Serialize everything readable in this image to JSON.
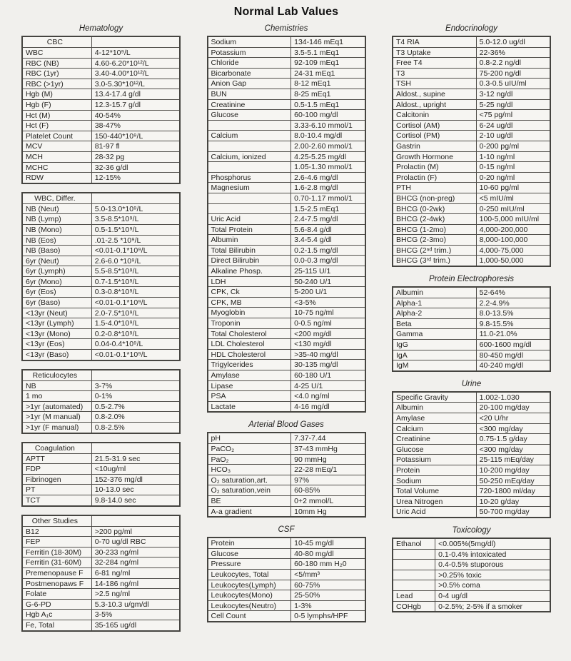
{
  "page_title": "Normal Lab Values",
  "columns": [
    {
      "sections": [
        {
          "heading": "Hematology",
          "table_header": "CBC",
          "rows": [
            [
              "WBC",
              "4-12*10⁹/L"
            ],
            [
              "RBC (NB)",
              "4.60-6.20*10¹²/L"
            ],
            [
              "RBC (1yr)",
              "3.40-4.00*10¹²/L"
            ],
            [
              "RBC (>1yr)",
              "3.0-5.30*10¹²/L"
            ],
            [
              "Hgb (M)",
              "13.4-17.4 g/dl"
            ],
            [
              "Hgb (F)",
              "12.3-15.7 g/dl"
            ],
            [
              "Hct (M)",
              "40-54%"
            ],
            [
              "Hct (F)",
              "38-47%"
            ],
            [
              "Platelet Count",
              "150-440*10⁹/L"
            ],
            [
              "MCV",
              "81-97 fl"
            ],
            [
              "MCH",
              "28-32 pg"
            ],
            [
              "MCHC",
              "32-36 g/dl"
            ],
            [
              "RDW",
              "12-15%"
            ]
          ]
        },
        {
          "table_header": "WBC, Differ.",
          "rows": [
            [
              "NB (Neut)",
              "5.0-13.0*10⁹/L"
            ],
            [
              "NB (Lymp)",
              "3.5-8.5*10⁹/L"
            ],
            [
              "NB (Mono)",
              "0.5-1.5*10⁹/L"
            ],
            [
              "NB (Eos)",
              ".01-2.5 *10⁹/L"
            ],
            [
              "NB (Baso)",
              "<0.01-0.1*10⁹/L"
            ],
            [
              "6yr (Neut)",
              "2.6-6.0 *10⁹/L"
            ],
            [
              "6yr (Lymph)",
              "5.5-8.5*10⁹/L"
            ],
            [
              "6yr (Mono)",
              "0.7-1.5*10⁹/L"
            ],
            [
              "6yr (Eos)",
              "0.3-0.8*10⁹/L"
            ],
            [
              "6yr (Baso)",
              "<0.01-0.1*10⁹/L"
            ],
            [
              "<13yr (Neut)",
              "2.0-7.5*10⁹/L"
            ],
            [
              "<13yr (Lymph)",
              "1.5-4.0*10⁹/L"
            ],
            [
              "<13yr (Mono)",
              "0.2-0.8*10⁹/L"
            ],
            [
              "<13yr (Eos)",
              "0.04-0.4*10⁹/L"
            ],
            [
              "<13yr (Baso)",
              "<0.01-0.1*10⁹/L"
            ]
          ]
        },
        {
          "table_header": "Reticulocytes",
          "rows": [
            [
              "NB",
              "3-7%"
            ],
            [
              "1 mo",
              "0-1%"
            ],
            [
              ">1yr (automated)",
              "0.5-2.7%"
            ],
            [
              ">1yr (M manual)",
              "0.8-2.0%"
            ],
            [
              ">1yr (F manual)",
              "0.8-2.5%"
            ]
          ]
        },
        {
          "table_header": "Coagulation",
          "rows": [
            [
              "APTT",
              "21.5-31.9 sec"
            ],
            [
              "FDP",
              "<10ug/ml"
            ],
            [
              "Fibrinogen",
              "152-376 mg/dl"
            ],
            [
              "PT",
              "10-13.0 sec"
            ],
            [
              "TCT",
              "9.8-14.0 sec"
            ]
          ]
        },
        {
          "table_header": "Other Studies",
          "rows": [
            [
              "B12",
              ">200 pg/ml"
            ],
            [
              "FEP",
              "0-70 ug/dl RBC"
            ],
            [
              "Ferritin (18-30M)",
              "30-233 ng/ml"
            ],
            [
              "Ferritin (31-60M)",
              "32-284 ng/ml"
            ],
            [
              "Premenopause F",
              "6-81 ng/ml"
            ],
            [
              "Postmenopaws F",
              "14-186 ng/ml"
            ],
            [
              "Folate",
              ">2.5 ng/ml"
            ],
            [
              "G-6-PD",
              "5.3-10.3 u/gm/dl"
            ],
            [
              "Hgb A₁c",
              "3-5%"
            ],
            [
              "Fe, Total",
              "35-165 ug/dl"
            ]
          ]
        }
      ]
    },
    {
      "sections": [
        {
          "heading": "Chemistries",
          "variant": "wide-label",
          "rows": [
            [
              "Sodium",
              "134-146 mEq1"
            ],
            [
              "Potassium",
              "3.5-5.1 mEq1"
            ],
            [
              "Chloride",
              "92-109 mEq1"
            ],
            [
              "Bicarbonate",
              "24-31 mEq1"
            ],
            [
              "Anion Gap",
              "8-12 mEq1"
            ],
            [
              "BUN",
              "8-25 mEq1"
            ],
            [
              "Creatinine",
              "0.5-1.5 mEq1"
            ],
            [
              "Glucose",
              "60-100 mg/dl"
            ],
            [
              "",
              "3.33-6.10 mmol/1"
            ],
            [
              "Calcium",
              "8.0-10.4 mg/dl"
            ],
            [
              "",
              "2.00-2.60 mmol/1"
            ],
            [
              "Calcium, ionized",
              "4.25-5.25 mg/dl"
            ],
            [
              "",
              "1.05-1.30 mmol/1"
            ],
            [
              "Phosphorus",
              "2.6-4.6 mg/dl"
            ],
            [
              "Magnesium",
              "1.6-2.8 mg/dl"
            ],
            [
              "",
              "0.70-1.17 mmol/1"
            ],
            [
              "",
              "1.5-2.5 mEq1"
            ],
            [
              "Uric Acid",
              "2.4-7.5 mg/dl"
            ],
            [
              "Total Protein",
              "5.6-8.4 g/dl"
            ],
            [
              "Albumin",
              "3.4-5.4 g/dl"
            ],
            [
              "Total Bilirubin",
              "0.2-1.5 mg/dl"
            ],
            [
              "Direct Bilirubin",
              "0.0-0.3 mg/dl"
            ],
            [
              "Alkaline Phosp.",
              "25-115 U/1"
            ],
            [
              "LDH",
              "50-240 U/1"
            ],
            [
              "CPK, Ck",
              "5-200 U/1"
            ],
            [
              "CPK, MB",
              "<3-5%"
            ],
            [
              "Myoglobin",
              "10-75 ng/ml"
            ],
            [
              "Troponin",
              "0-0.5 ng/ml"
            ],
            [
              "Total Cholesterol",
              "<200 mg/dl"
            ],
            [
              "LDL Cholesterol",
              "<130 mg/dl"
            ],
            [
              "HDL Cholesterol",
              ">35-40 mg/dl"
            ],
            [
              "Trigylcerides",
              "30-135 mg/dl"
            ],
            [
              "Amylase",
              "60-180 U/1"
            ],
            [
              "Lipase",
              "4-25 U/1"
            ],
            [
              "PSA",
              "<4.0 ng/ml"
            ],
            [
              "Lactate",
              "4-16 mg/dl"
            ]
          ]
        },
        {
          "heading": "Arterial Blood Gases",
          "variant": "wide-label",
          "rows": [
            [
              "pH",
              "7.37-7.44"
            ],
            [
              "PaCO₂",
              "37-43 mmHg"
            ],
            [
              "PaO₂",
              "90 mmHg"
            ],
            [
              "HCO₃",
              "22-28 mEq/1"
            ],
            [
              "O₂ saturation,art.",
              "97%"
            ],
            [
              "O₂ saturation,vein",
              "60-85%"
            ],
            [
              "BE",
              "0+2 mmol/L"
            ],
            [
              "A-a gradient",
              "10mm Hg"
            ]
          ]
        },
        {
          "heading": "CSF",
          "variant": "wide-label",
          "rows": [
            [
              "Protein",
              "10-45 mg/dl"
            ],
            [
              "Glucose",
              "40-80 mg/dl"
            ],
            [
              "Pressure",
              "60-180 mm H₂0"
            ],
            [
              "Leukocytes, Total",
              "<5/mm³"
            ],
            [
              "Leukocytes(Lymph)",
              "60-75%"
            ],
            [
              "Leukocytes(Mono)",
              "25-50%"
            ],
            [
              "Leukocytes(Neutro)",
              "1-3%"
            ],
            [
              "Cell Count",
              "0-5 lymphs/HPF"
            ]
          ]
        }
      ]
    },
    {
      "sections": [
        {
          "heading": "Endocrinology",
          "variant": "wide-label",
          "rows": [
            [
              "T4 RIA",
              "5.0-12.0 ug/dl"
            ],
            [
              "T3 Uptake",
              "22-36%"
            ],
            [
              "Free T4",
              "0.8-2.2 ng/dl"
            ],
            [
              "T3",
              "75-200 ng/dl"
            ],
            [
              "TSH",
              "0.3-0.5 uIU/ml"
            ],
            [
              "Aldost., supine",
              "3-12 ng/dl"
            ],
            [
              "Aldost., upright",
              "5-25 ng/dl"
            ],
            [
              "Calcitonin",
              "<75 pg/ml"
            ],
            [
              "Cortisol (AM)",
              "6-24 ug/dl"
            ],
            [
              "Cortisol (PM)",
              "2-10 ug/dl"
            ],
            [
              "Gastrin",
              "0-200 pg/ml"
            ],
            [
              "Growth Hormone",
              "1-10 ng/ml"
            ],
            [
              "Prolactin (M)",
              "0-15 ng/ml"
            ],
            [
              "Prolactin (F)",
              "0-20 ng/ml"
            ],
            [
              "PTH",
              "10-60 pg/ml"
            ],
            [
              "BHCG (non-preg)",
              "<5 mIU/ml"
            ],
            [
              "BHCG (0-2wk)",
              "0-250 mIU/ml"
            ],
            [
              "BHCG (2-4wk)",
              "100-5,000 mIU/ml"
            ],
            [
              "BHCG (1-2mo)",
              "4,000-200,000"
            ],
            [
              "BHCG (2-3mo)",
              "8,000-100,000"
            ],
            [
              "BHCG (2ⁿᵈ trim.)",
              "4,000-75,000"
            ],
            [
              "BHCG (3ʳᵈ trim.)",
              "1,000-50,000"
            ]
          ]
        },
        {
          "heading": "Protein Electrophoresis",
          "variant": "wide-label",
          "rows": [
            [
              "Albumin",
              "52-64%"
            ],
            [
              "Alpha-1",
              "2.2-4.9%"
            ],
            [
              "Alpha-2",
              "8.0-13.5%"
            ],
            [
              "Beta",
              "9.8-15.5%"
            ],
            [
              "Gamma",
              "11.0-21.0%"
            ],
            [
              "IgG",
              "600-1600 mg/dl"
            ],
            [
              "IgA",
              "80-450 mg/dl"
            ],
            [
              "IgM",
              "40-240 mg/dl"
            ]
          ]
        },
        {
          "heading": "Urine",
          "variant": "wide-label",
          "rows": [
            [
              "Specific Gravity",
              "1.002-1.030"
            ],
            [
              "Albumin",
              "20-100 mg/day"
            ],
            [
              "Amylase",
              "<20 U/hr"
            ],
            [
              "Calcium",
              "<300 mg/day"
            ],
            [
              "Creatinine",
              "0.75-1.5 g/day"
            ],
            [
              "Glucose",
              "<300 mg/day"
            ],
            [
              "Potassium",
              "25-115 mEq/day"
            ],
            [
              "Protein",
              "10-200 mg/day"
            ],
            [
              "Sodium",
              "50-250 mEq/day"
            ],
            [
              "Total Volume",
              "720-1800 ml/day"
            ],
            [
              "Urea Nitrogen",
              "10-20 g/day"
            ],
            [
              "Uric Acid",
              "50-700 mg/day"
            ]
          ]
        },
        {
          "heading": "Toxicology",
          "variant": "narrow-label",
          "rows": [
            [
              "Ethanol",
              "<0.005%(5mg/dl)"
            ],
            [
              "",
              "0.1-0.4% intoxicated"
            ],
            [
              "",
              "0.4-0.5% stuporous"
            ],
            [
              "",
              ">0.25% toxic"
            ],
            [
              "",
              ">0.5% coma"
            ],
            [
              "Lead",
              "0-4 ug/dl"
            ],
            [
              "COHgb",
              "0-2.5%; 2-5% if a smoker"
            ]
          ]
        }
      ]
    }
  ]
}
